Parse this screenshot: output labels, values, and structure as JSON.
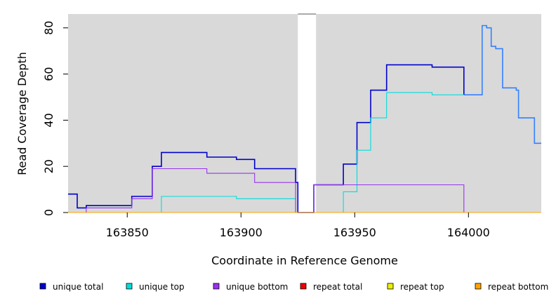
{
  "chart_data": {
    "type": "line",
    "title": "",
    "xlabel": "Coordinate in Reference Genome",
    "ylabel": "Read Coverage Depth",
    "xlim": [
      163824,
      164032
    ],
    "ylim": [
      0,
      86
    ],
    "x_ticks": [
      163850,
      163900,
      163950,
      164000
    ],
    "y_ticks": [
      0,
      20,
      40,
      60,
      80
    ],
    "grid": false,
    "gap_region": [
      163925,
      163933
    ],
    "legend_position": "bottom",
    "series": [
      {
        "name": "unique total",
        "color": "#0000cc",
        "points": [
          [
            163824,
            8
          ],
          [
            163828,
            8
          ],
          [
            163828,
            2
          ],
          [
            163832,
            2
          ],
          [
            163832,
            3
          ],
          [
            163852,
            3
          ],
          [
            163852,
            7
          ],
          [
            163861,
            7
          ],
          [
            163861,
            20
          ],
          [
            163865,
            20
          ],
          [
            163865,
            26
          ],
          [
            163885,
            26
          ],
          [
            163885,
            24
          ],
          [
            163898,
            24
          ],
          [
            163898,
            23
          ],
          [
            163906,
            23
          ],
          [
            163906,
            19
          ],
          [
            163924,
            19
          ],
          [
            163924,
            13
          ],
          [
            163925,
            13
          ],
          [
            163925,
            0
          ],
          [
            163932,
            0
          ],
          [
            163932,
            12
          ],
          [
            163945,
            12
          ],
          [
            163945,
            21
          ],
          [
            163951,
            21
          ],
          [
            163951,
            39
          ],
          [
            163957,
            39
          ],
          [
            163957,
            53
          ],
          [
            163964,
            53
          ],
          [
            163964,
            64
          ],
          [
            163984,
            64
          ],
          [
            163984,
            63
          ],
          [
            163998,
            63
          ],
          [
            163998,
            51
          ]
        ]
      },
      {
        "name": "unique top",
        "color": "#00dddd",
        "points": [
          [
            163824,
            0
          ],
          [
            163865,
            0
          ],
          [
            163865,
            7
          ],
          [
            163898,
            7
          ],
          [
            163898,
            6
          ],
          [
            163924,
            6
          ],
          [
            163924,
            0
          ],
          [
            163945,
            0
          ],
          [
            163945,
            9
          ],
          [
            163951,
            9
          ],
          [
            163951,
            27
          ],
          [
            163957,
            27
          ],
          [
            163957,
            41
          ],
          [
            163964,
            41
          ],
          [
            163964,
            52
          ],
          [
            163984,
            52
          ],
          [
            163984,
            51
          ],
          [
            163998,
            51
          ],
          [
            163998,
            51
          ]
        ]
      },
      {
        "name": "unique bottom",
        "color": "#9933ee",
        "points": [
          [
            163828,
            0
          ],
          [
            163832,
            0
          ],
          [
            163832,
            2
          ],
          [
            163852,
            2
          ],
          [
            163852,
            6
          ],
          [
            163861,
            6
          ],
          [
            163861,
            19
          ],
          [
            163885,
            19
          ],
          [
            163885,
            17
          ],
          [
            163906,
            17
          ],
          [
            163906,
            13
          ],
          [
            163924,
            13
          ],
          [
            163924,
            0
          ],
          [
            163932,
            0
          ],
          [
            163932,
            12
          ],
          [
            163998,
            12
          ],
          [
            163998,
            0
          ],
          [
            164032,
            0
          ]
        ]
      },
      {
        "name": "repeat total",
        "color": "#ee0000",
        "points": [
          [
            163998,
            0
          ],
          [
            164032,
            0
          ]
        ]
      },
      {
        "name": "repeat top",
        "color": "#eeee00",
        "points": []
      },
      {
        "name": "repeat bottom",
        "color": "#ffa500",
        "points": [
          [
            163824,
            0
          ],
          [
            164032,
            0
          ]
        ]
      },
      {
        "name": "",
        "color": "#3380ff",
        "points": [
          [
            163998,
            51
          ],
          [
            164006,
            51
          ],
          [
            164006,
            81
          ],
          [
            164008,
            81
          ],
          [
            164008,
            80
          ],
          [
            164010,
            80
          ],
          [
            164010,
            72
          ],
          [
            164012,
            72
          ],
          [
            164012,
            71
          ],
          [
            164015,
            71
          ],
          [
            164015,
            54
          ],
          [
            164021,
            54
          ],
          [
            164021,
            53
          ],
          [
            164022,
            53
          ],
          [
            164022,
            41
          ],
          [
            164029,
            41
          ],
          [
            164029,
            30
          ],
          [
            164032,
            30
          ]
        ]
      }
    ]
  }
}
